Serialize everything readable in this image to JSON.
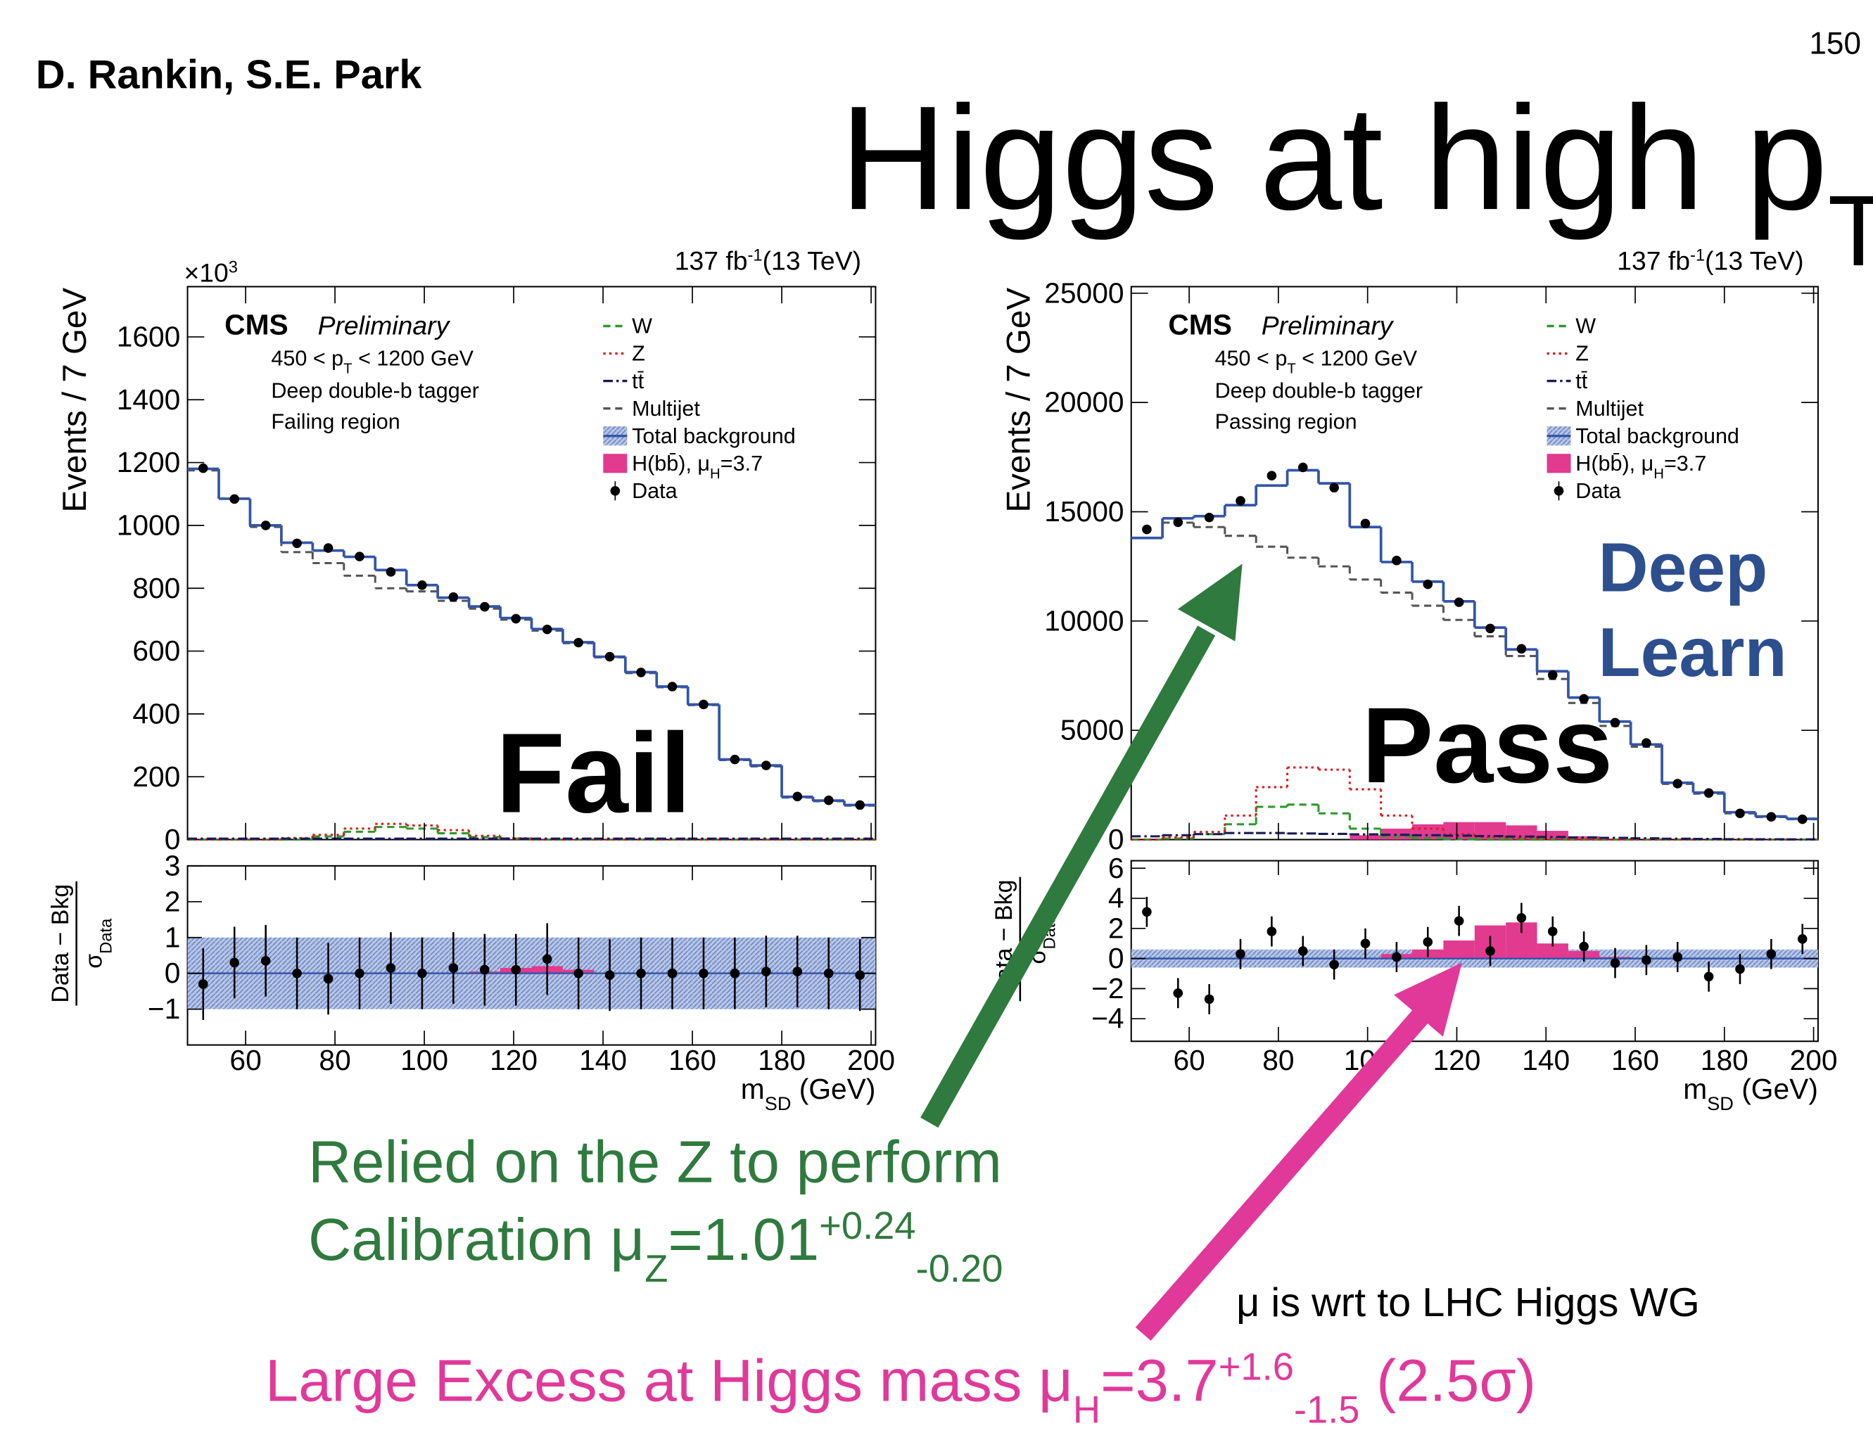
{
  "header": {
    "authors": "D. Rankin, S.E. Park",
    "page_number": "150",
    "title": "Higgs at high p",
    "title_sub": "T"
  },
  "chart_data": [
    {
      "type": "histogram",
      "lumi": "137 fb",
      "lumi_sup": "-1",
      "energy": "(13 TeV)",
      "multiplier": "×10",
      "multiplier_sup": "3",
      "experiment": "CMS",
      "status": "Preliminary",
      "pt_text": "450 < p",
      "pt_sub": "T",
      "pt_rest": " < 1200 GeV",
      "tagger": "Deep double-b tagger",
      "region": "Failing region",
      "overlay_label": "Fail",
      "ylabel": "Events / 7 GeV",
      "xlabel": "m",
      "xlabel_sub": "SD",
      "xlabel_rest": " (GeV)",
      "bins": [
        47,
        54,
        61,
        68,
        75,
        82,
        89,
        96,
        103,
        110,
        117,
        124,
        131,
        138,
        145,
        152,
        159,
        166,
        173,
        180,
        187,
        194,
        201
      ],
      "xlim": [
        47,
        201
      ],
      "xticks": [
        60,
        80,
        100,
        120,
        140,
        160,
        180,
        200
      ],
      "ylim": [
        0,
        1760
      ],
      "yticks": [
        0,
        200,
        400,
        600,
        800,
        1000,
        1200,
        1400,
        1600
      ],
      "series": [
        {
          "name": "W",
          "color": "#2a9a2a",
          "style": "dashed",
          "values": [
            0,
            0,
            0,
            0,
            10,
            25,
            40,
            35,
            20,
            8,
            3,
            0,
            0,
            0,
            0,
            0,
            0,
            0,
            0,
            0,
            0,
            0
          ]
        },
        {
          "name": "Z",
          "color": "#d62020",
          "style": "dotted",
          "values": [
            0,
            0,
            0,
            5,
            15,
            35,
            50,
            45,
            30,
            12,
            4,
            0,
            0,
            0,
            0,
            0,
            0,
            0,
            0,
            0,
            0,
            0
          ]
        },
        {
          "name": "tt̄",
          "color": "#1a1a5a",
          "style": "dashdot",
          "values": [
            3,
            3,
            3,
            3,
            3,
            3,
            3,
            3,
            3,
            3,
            3,
            3,
            3,
            3,
            3,
            3,
            3,
            3,
            3,
            3,
            3,
            3
          ]
        },
        {
          "name": "Multijet",
          "color": "#555555",
          "style": "dashed",
          "values": [
            1175,
            1085,
            995,
            915,
            880,
            840,
            800,
            790,
            760,
            735,
            700,
            665,
            625,
            580,
            530,
            485,
            428,
            253,
            233,
            134,
            122,
            108
          ]
        },
        {
          "name": "Total background",
          "color": "#3355aa",
          "style": "solid",
          "values": [
            1180,
            1085,
            1000,
            945,
            920,
            900,
            858,
            810,
            770,
            742,
            705,
            670,
            628,
            582,
            533,
            487,
            430,
            255,
            236,
            136,
            124,
            110
          ]
        },
        {
          "name": "H(bb̄), μ",
          "name_sub": "H",
          "name_rest": "=3.7",
          "color": "#e23a8f",
          "style": "filled",
          "values": [
            0,
            0,
            0,
            0,
            0,
            0,
            0,
            0,
            0,
            1,
            2,
            3,
            2,
            1,
            0,
            0,
            0,
            0,
            0,
            0,
            0,
            0
          ]
        },
        {
          "name": "Data",
          "color": "#000000",
          "style": "points",
          "values": [
            1182,
            1084,
            1000,
            943,
            928,
            901,
            852,
            810,
            772,
            741,
            703,
            669,
            627,
            582,
            532,
            487,
            430,
            255,
            236,
            137,
            125,
            110
          ]
        }
      ],
      "ratio": {
        "ylabel": "Data − Bkg",
        "ylabel_den": "σ",
        "ylabel_den_sub": "Data",
        "ylim": [
          -2,
          3
        ],
        "yticks": [
          {
            "value": -1,
            "label": "−1"
          },
          0,
          1,
          2,
          3
        ],
        "values": [
          -0.3,
          0.3,
          0.35,
          0,
          -0.15,
          0,
          0.15,
          0,
          0.15,
          0.1,
          0.1,
          0.4,
          0,
          -0.05,
          0,
          0,
          0,
          0,
          0.05,
          0.05,
          0,
          -0.05
        ],
        "errors": [
          1,
          1,
          1,
          1,
          1,
          1,
          1,
          1,
          1,
          1,
          1,
          1,
          1,
          1,
          1,
          1,
          1,
          1,
          1,
          1,
          1,
          1
        ],
        "band": [
          1,
          1,
          1,
          1,
          1,
          1,
          1,
          1,
          1,
          1,
          1,
          1,
          1,
          1,
          1,
          1,
          1,
          1,
          1,
          1,
          1,
          1
        ],
        "signal": [
          0,
          0,
          0,
          0,
          0,
          0,
          0,
          0,
          0,
          0.05,
          0.15,
          0.2,
          0.1,
          0,
          0,
          0,
          0,
          0,
          0,
          0,
          0,
          0
        ]
      }
    },
    {
      "type": "histogram",
      "lumi": "137 fb",
      "lumi_sup": "-1",
      "energy": "(13 TeV)",
      "experiment": "CMS",
      "status": "Preliminary",
      "pt_text": "450 < p",
      "pt_sub": "T",
      "pt_rest": " < 1200 GeV",
      "tagger": "Deep double-b tagger",
      "region": "Passing region",
      "overlay_label": "Pass",
      "ylabel": "Events / 7 GeV",
      "xlabel": "m",
      "xlabel_sub": "SD",
      "xlabel_rest": " (GeV)",
      "bins": [
        47,
        54,
        61,
        68,
        75,
        82,
        89,
        96,
        103,
        110,
        117,
        124,
        131,
        138,
        145,
        152,
        159,
        166,
        173,
        180,
        187,
        194,
        201
      ],
      "xlim": [
        47,
        201
      ],
      "xticks": [
        60,
        80,
        100,
        120,
        140,
        160,
        180,
        200
      ],
      "ylim": [
        0,
        25300
      ],
      "yticks": [
        0,
        5000,
        10000,
        15000,
        20000,
        25000
      ],
      "series": [
        {
          "name": "W",
          "color": "#2a9a2a",
          "style": "dashed",
          "values": [
            0,
            50,
            250,
            700,
            1500,
            1600,
            1200,
            500,
            150,
            60,
            20,
            0,
            0,
            0,
            0,
            0,
            0,
            0,
            0,
            0,
            0,
            0
          ]
        },
        {
          "name": "Z",
          "color": "#d62020",
          "style": "dotted",
          "values": [
            0,
            100,
            350,
            1100,
            2400,
            3300,
            3200,
            2300,
            1100,
            500,
            250,
            120,
            60,
            30,
            0,
            0,
            0,
            0,
            0,
            0,
            0,
            0
          ]
        },
        {
          "name": "tt̄",
          "color": "#1a1a5a",
          "style": "dashdot",
          "values": [
            150,
            200,
            250,
            300,
            300,
            280,
            260,
            240,
            220,
            200,
            180,
            160,
            140,
            120,
            100,
            80,
            60,
            40,
            30,
            20,
            15,
            10
          ]
        },
        {
          "name": "Multijet",
          "color": "#555555",
          "style": "dashed",
          "values": [
            13800,
            14500,
            14300,
            13900,
            13400,
            12900,
            12500,
            11900,
            11300,
            10700,
            10050,
            9300,
            8400,
            7350,
            6250,
            5200,
            4250,
            2550,
            2100,
            1200,
            1030,
            930
          ]
        },
        {
          "name": "Total background",
          "color": "#3355aa",
          "style": "solid",
          "values": [
            13800,
            14700,
            14800,
            15300,
            16200,
            16900,
            16300,
            14300,
            12700,
            11800,
            10900,
            9700,
            8700,
            7700,
            6500,
            5400,
            4350,
            2600,
            2150,
            1250,
            1060,
            950
          ]
        },
        {
          "name": "H(bb̄), μ",
          "name_sub": "H",
          "name_rest": "=3.7",
          "color": "#e23a8f",
          "style": "filled",
          "values": [
            0,
            0,
            0,
            0,
            0,
            0,
            0,
            200,
            500,
            700,
            800,
            800,
            650,
            400,
            150,
            50,
            0,
            0,
            0,
            0,
            0,
            0
          ]
        },
        {
          "name": "Data",
          "color": "#000000",
          "style": "points",
          "values": [
            14192,
            14520,
            14738,
            15500,
            16650,
            17030,
            16100,
            14460,
            12770,
            11680,
            10860,
            9660,
            8730,
            7530,
            6440,
            5350,
            4420,
            2560,
            2130,
            1200,
            1040,
            930
          ]
        }
      ],
      "ratio": {
        "ylabel": "Data − Bkg",
        "ylabel_den": "σ",
        "ylabel_den_sub": "Data",
        "ylim": [
          -5.5,
          6.5
        ],
        "yticks": [
          {
            "value": -4,
            "label": "−4"
          },
          {
            "value": -2,
            "label": "−2"
          },
          0,
          2,
          4,
          6
        ],
        "values": [
          3.1,
          -2.3,
          -2.7,
          0.3,
          1.8,
          0.5,
          -0.4,
          1.0,
          0.1,
          1.1,
          2.5,
          0.5,
          2.7,
          1.8,
          0.8,
          -0.3,
          -0.1,
          0.1,
          -1.2,
          -0.7,
          0.3,
          1.3
        ],
        "errors": [
          1,
          1,
          1,
          1,
          1,
          1,
          1,
          1,
          1,
          1,
          1,
          1,
          1,
          1,
          1,
          1,
          1,
          1,
          1,
          1,
          1,
          1
        ],
        "band": [
          0.6,
          0.6,
          0.6,
          0.6,
          0.6,
          0.6,
          0.6,
          0.6,
          0.6,
          0.6,
          0.6,
          0.6,
          0.6,
          0.6,
          0.6,
          0.6,
          0.6,
          0.6,
          0.6,
          0.6,
          0.6,
          0.6
        ],
        "signal": [
          0,
          0,
          0,
          0,
          0,
          0,
          0,
          0,
          0.3,
          0.6,
          1.2,
          2.2,
          2.4,
          1.0,
          0.5,
          0.1,
          0,
          0,
          0,
          0,
          0,
          0
        ]
      }
    }
  ],
  "annotations": {
    "deep_learn": [
      "Deep",
      "Learn"
    ],
    "z_line1": "Relied on the Z to perform",
    "z_line2": "Calibration μ",
    "z_sub": "Z",
    "z_value": "=1.01",
    "z_up": "+0.24",
    "z_down": "-0.20",
    "h_text": "Large Excess at Higgs mass μ",
    "h_sub": "H",
    "h_value": "=3.7",
    "h_up": "+1.6",
    "h_down": "-1.5",
    "h_sig": " (2.5σ)",
    "note": "μ is wrt to LHC Higgs WG"
  }
}
